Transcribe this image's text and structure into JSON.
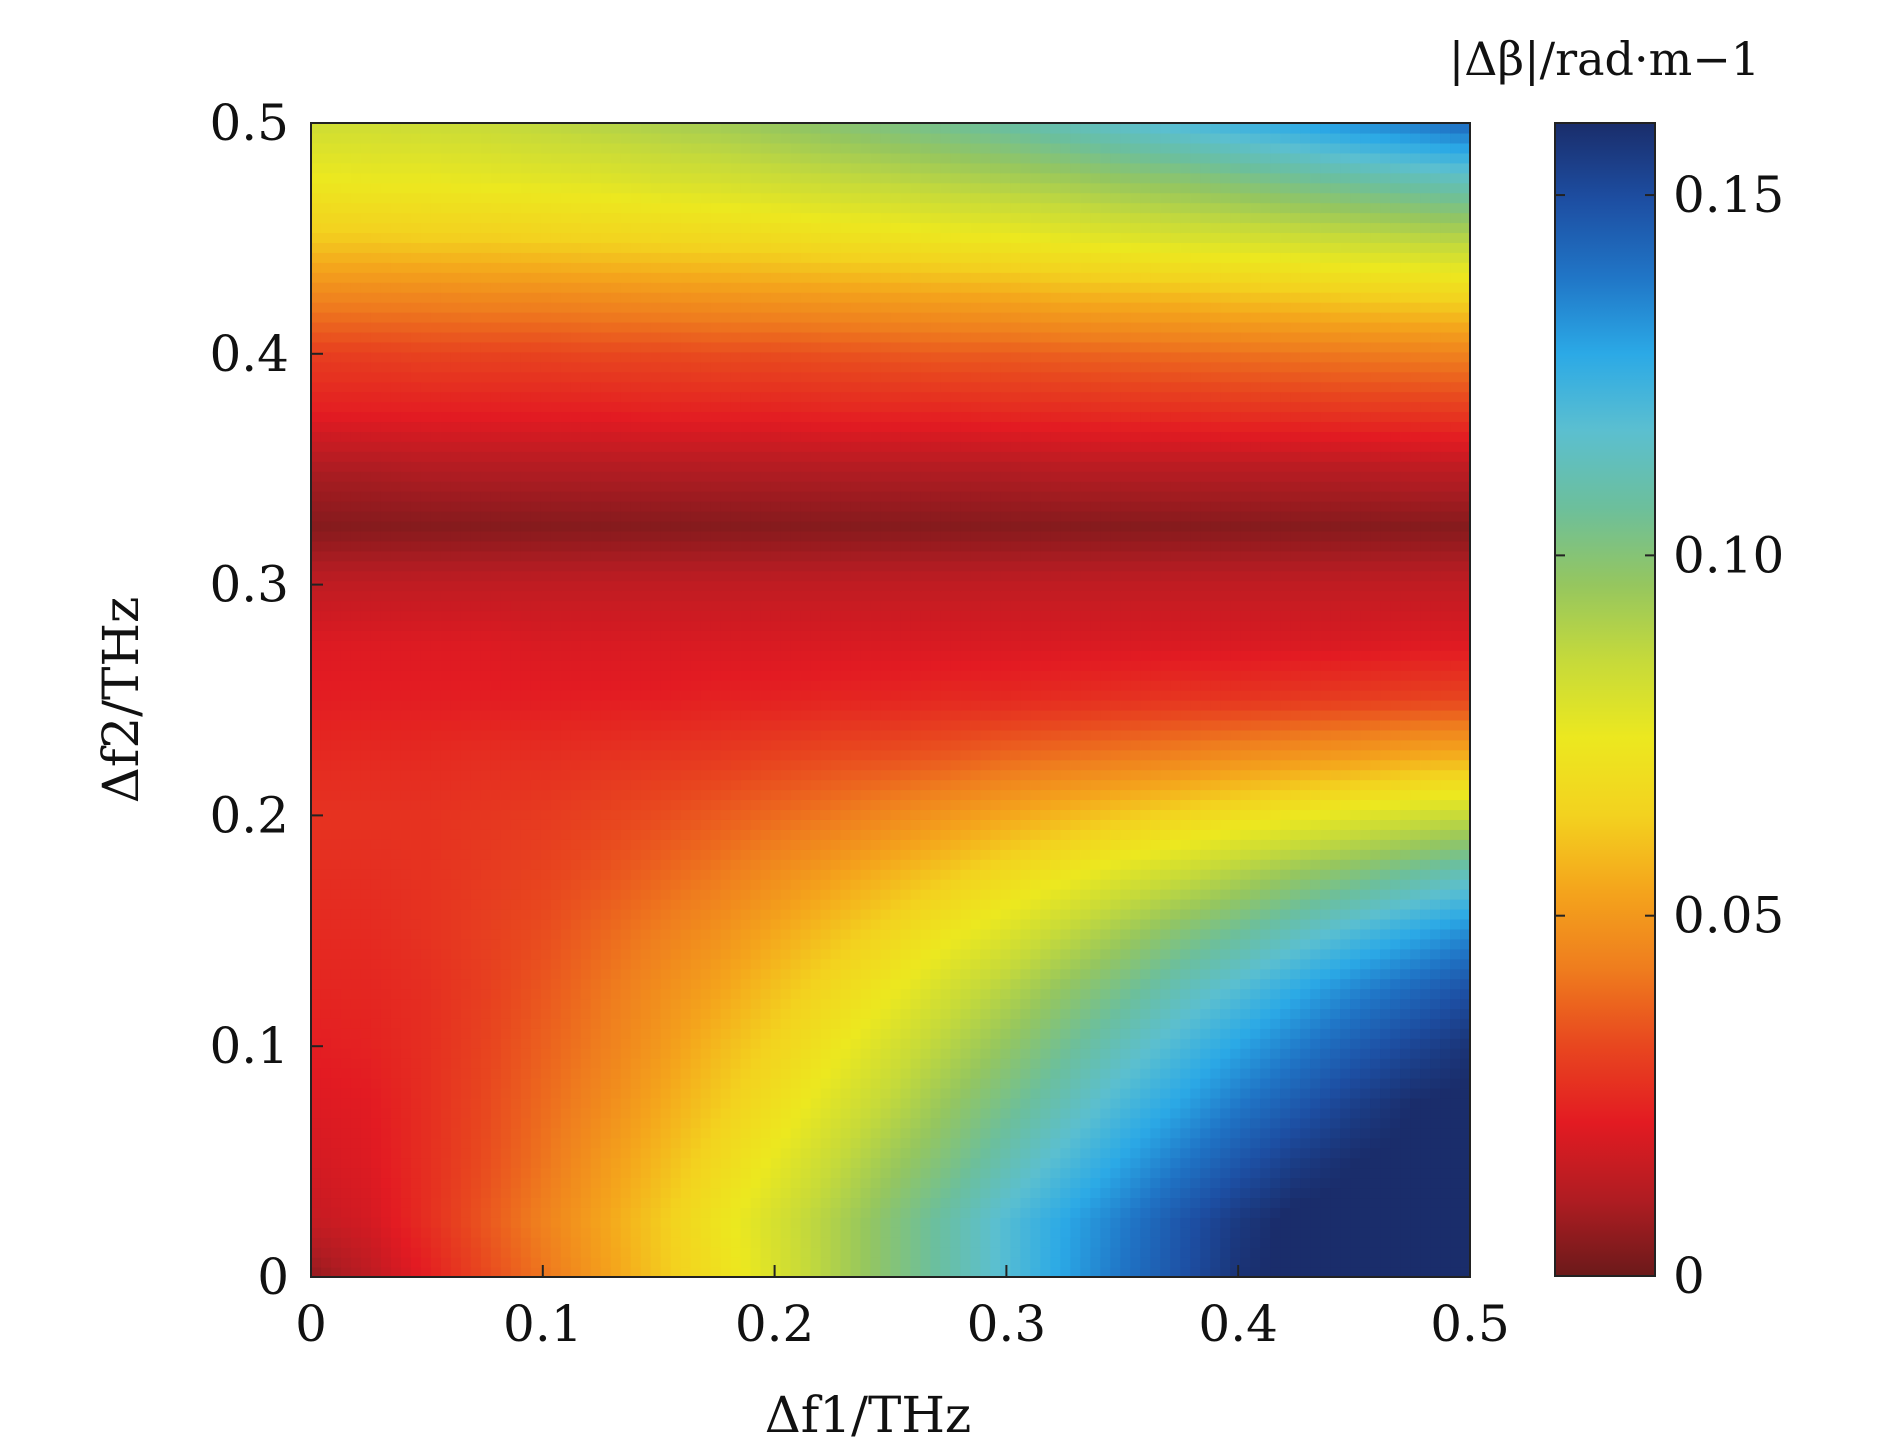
{
  "chart_data": {
    "type": "heatmap",
    "title": "",
    "xlabel": "Δf1/THz",
    "ylabel": "Δf2/THz",
    "xlim": [
      0,
      0.5
    ],
    "ylim": [
      0,
      0.5
    ],
    "x_ticks": [
      0,
      0.1,
      0.2,
      0.3,
      0.4,
      0.5
    ],
    "x_tick_labels": [
      "0",
      "0.1",
      "0.2",
      "0.3",
      "0.4",
      "0.5"
    ],
    "y_ticks": [
      0,
      0.1,
      0.2,
      0.3,
      0.4,
      0.5
    ],
    "y_tick_labels": [
      "0",
      "0.1",
      "0.2",
      "0.3",
      "0.4",
      "0.5"
    ],
    "colorbar": {
      "label": "|Δβ|/rad·m−1",
      "range": [
        0,
        0.16
      ],
      "ticks": [
        0,
        0.05,
        0.1,
        0.15
      ],
      "tick_labels": [
        "0",
        "0.05",
        "0.10",
        "0.15"
      ],
      "colormap": [
        "#6b1a1a",
        "#b01c22",
        "#e31b22",
        "#e8471f",
        "#ef7d1e",
        "#f4a41c",
        "#f3d21f",
        "#ece81f",
        "#c6da3a",
        "#95c65f",
        "#6cbf9c",
        "#5bbfd0",
        "#2ba9e6",
        "#2075c6",
        "#1d4ea2",
        "#1a2d6b"
      ]
    },
    "grid": false,
    "x_step": 0.025,
    "y_values": [
      0,
      0.025,
      0.05,
      0.075,
      0.1,
      0.125,
      0.15,
      0.175,
      0.2,
      0.225,
      0.25,
      0.275,
      0.3,
      0.325,
      0.35,
      0.375,
      0.4,
      0.425,
      0.45,
      0.475,
      0.5
    ],
    "z_rows": [
      [
        0.006,
        0.013,
        0.022,
        0.032,
        0.041,
        0.051,
        0.061,
        0.07,
        0.08,
        0.09,
        0.1,
        0.109,
        0.119,
        0.129,
        0.139,
        0.148,
        0.158,
        0.162,
        0.162,
        0.162,
        0.162
      ],
      [
        0.015,
        0.018,
        0.026,
        0.035,
        0.044,
        0.053,
        0.062,
        0.072,
        0.081,
        0.09,
        0.1,
        0.109,
        0.119,
        0.128,
        0.137,
        0.147,
        0.156,
        0.162,
        0.162,
        0.162,
        0.162
      ],
      [
        0.018,
        0.02,
        0.026,
        0.033,
        0.041,
        0.05,
        0.058,
        0.067,
        0.076,
        0.085,
        0.094,
        0.102,
        0.111,
        0.12,
        0.129,
        0.138,
        0.147,
        0.155,
        0.16,
        0.162,
        0.162
      ],
      [
        0.02,
        0.021,
        0.026,
        0.032,
        0.039,
        0.046,
        0.054,
        0.062,
        0.07,
        0.079,
        0.087,
        0.096,
        0.104,
        0.112,
        0.121,
        0.129,
        0.138,
        0.146,
        0.154,
        0.16,
        0.162
      ],
      [
        0.022,
        0.023,
        0.026,
        0.031,
        0.037,
        0.043,
        0.05,
        0.058,
        0.065,
        0.073,
        0.081,
        0.089,
        0.097,
        0.105,
        0.113,
        0.121,
        0.129,
        0.137,
        0.145,
        0.152,
        0.158
      ],
      [
        0.024,
        0.024,
        0.026,
        0.03,
        0.035,
        0.041,
        0.047,
        0.053,
        0.06,
        0.067,
        0.074,
        0.082,
        0.089,
        0.097,
        0.104,
        0.112,
        0.119,
        0.127,
        0.135,
        0.142,
        0.149
      ],
      [
        0.025,
        0.025,
        0.027,
        0.03,
        0.033,
        0.038,
        0.043,
        0.048,
        0.054,
        0.06,
        0.066,
        0.073,
        0.079,
        0.086,
        0.093,
        0.1,
        0.106,
        0.113,
        0.12,
        0.127,
        0.134
      ],
      [
        0.026,
        0.026,
        0.027,
        0.029,
        0.031,
        0.034,
        0.038,
        0.042,
        0.047,
        0.052,
        0.057,
        0.062,
        0.068,
        0.073,
        0.079,
        0.084,
        0.09,
        0.096,
        0.101,
        0.107,
        0.113
      ],
      [
        0.027,
        0.027,
        0.027,
        0.028,
        0.029,
        0.031,
        0.033,
        0.036,
        0.039,
        0.042,
        0.046,
        0.05,
        0.054,
        0.058,
        0.062,
        0.066,
        0.07,
        0.074,
        0.078,
        0.082,
        0.086
      ],
      [
        0.025,
        0.025,
        0.025,
        0.026,
        0.026,
        0.027,
        0.028,
        0.029,
        0.031,
        0.033,
        0.034,
        0.036,
        0.039,
        0.041,
        0.043,
        0.045,
        0.048,
        0.05,
        0.052,
        0.055,
        0.057
      ],
      [
        0.022,
        0.022,
        0.022,
        0.022,
        0.022,
        0.022,
        0.022,
        0.023,
        0.023,
        0.024,
        0.024,
        0.025,
        0.025,
        0.026,
        0.027,
        0.028,
        0.028,
        0.029,
        0.03,
        0.031,
        0.032
      ],
      [
        0.02,
        0.02,
        0.02,
        0.02,
        0.019,
        0.019,
        0.019,
        0.019,
        0.019,
        0.019,
        0.019,
        0.019,
        0.019,
        0.019,
        0.019,
        0.019,
        0.019,
        0.019,
        0.019,
        0.02,
        0.02
      ],
      [
        0.014,
        0.014,
        0.014,
        0.014,
        0.014,
        0.014,
        0.014,
        0.014,
        0.014,
        0.014,
        0.014,
        0.014,
        0.014,
        0.014,
        0.014,
        0.014,
        0.014,
        0.014,
        0.014,
        0.014,
        0.014
      ],
      [
        0.004,
        0.004,
        0.004,
        0.004,
        0.004,
        0.004,
        0.004,
        0.004,
        0.004,
        0.004,
        0.004,
        0.004,
        0.004,
        0.004,
        0.004,
        0.004,
        0.004,
        0.004,
        0.004,
        0.004,
        0.004
      ],
      [
        0.01,
        0.01,
        0.011,
        0.011,
        0.011,
        0.011,
        0.011,
        0.011,
        0.011,
        0.011,
        0.011,
        0.011,
        0.011,
        0.012,
        0.012,
        0.012,
        0.012,
        0.012,
        0.012,
        0.013,
        0.013
      ],
      [
        0.022,
        0.022,
        0.022,
        0.022,
        0.022,
        0.022,
        0.023,
        0.023,
        0.023,
        0.024,
        0.024,
        0.024,
        0.025,
        0.025,
        0.026,
        0.026,
        0.027,
        0.027,
        0.028,
        0.028,
        0.029
      ],
      [
        0.03,
        0.03,
        0.031,
        0.031,
        0.031,
        0.032,
        0.032,
        0.033,
        0.033,
        0.034,
        0.035,
        0.036,
        0.036,
        0.037,
        0.038,
        0.039,
        0.04,
        0.041,
        0.042,
        0.043,
        0.044
      ],
      [
        0.045,
        0.045,
        0.045,
        0.046,
        0.046,
        0.047,
        0.048,
        0.049,
        0.05,
        0.051,
        0.052,
        0.053,
        0.054,
        0.056,
        0.057,
        0.058,
        0.06,
        0.061,
        0.063,
        0.064,
        0.066
      ],
      [
        0.062,
        0.062,
        0.063,
        0.063,
        0.064,
        0.065,
        0.066,
        0.067,
        0.068,
        0.07,
        0.071,
        0.073,
        0.074,
        0.076,
        0.078,
        0.08,
        0.081,
        0.083,
        0.085,
        0.087,
        0.089
      ],
      [
        0.074,
        0.075,
        0.075,
        0.076,
        0.077,
        0.078,
        0.08,
        0.081,
        0.083,
        0.085,
        0.087,
        0.089,
        0.091,
        0.093,
        0.096,
        0.098,
        0.101,
        0.104,
        0.107,
        0.11,
        0.113
      ],
      [
        0.083,
        0.083,
        0.084,
        0.085,
        0.087,
        0.089,
        0.091,
        0.093,
        0.096,
        0.099,
        0.102,
        0.105,
        0.108,
        0.112,
        0.116,
        0.12,
        0.124,
        0.128,
        0.133,
        0.137,
        0.142
      ]
    ]
  }
}
